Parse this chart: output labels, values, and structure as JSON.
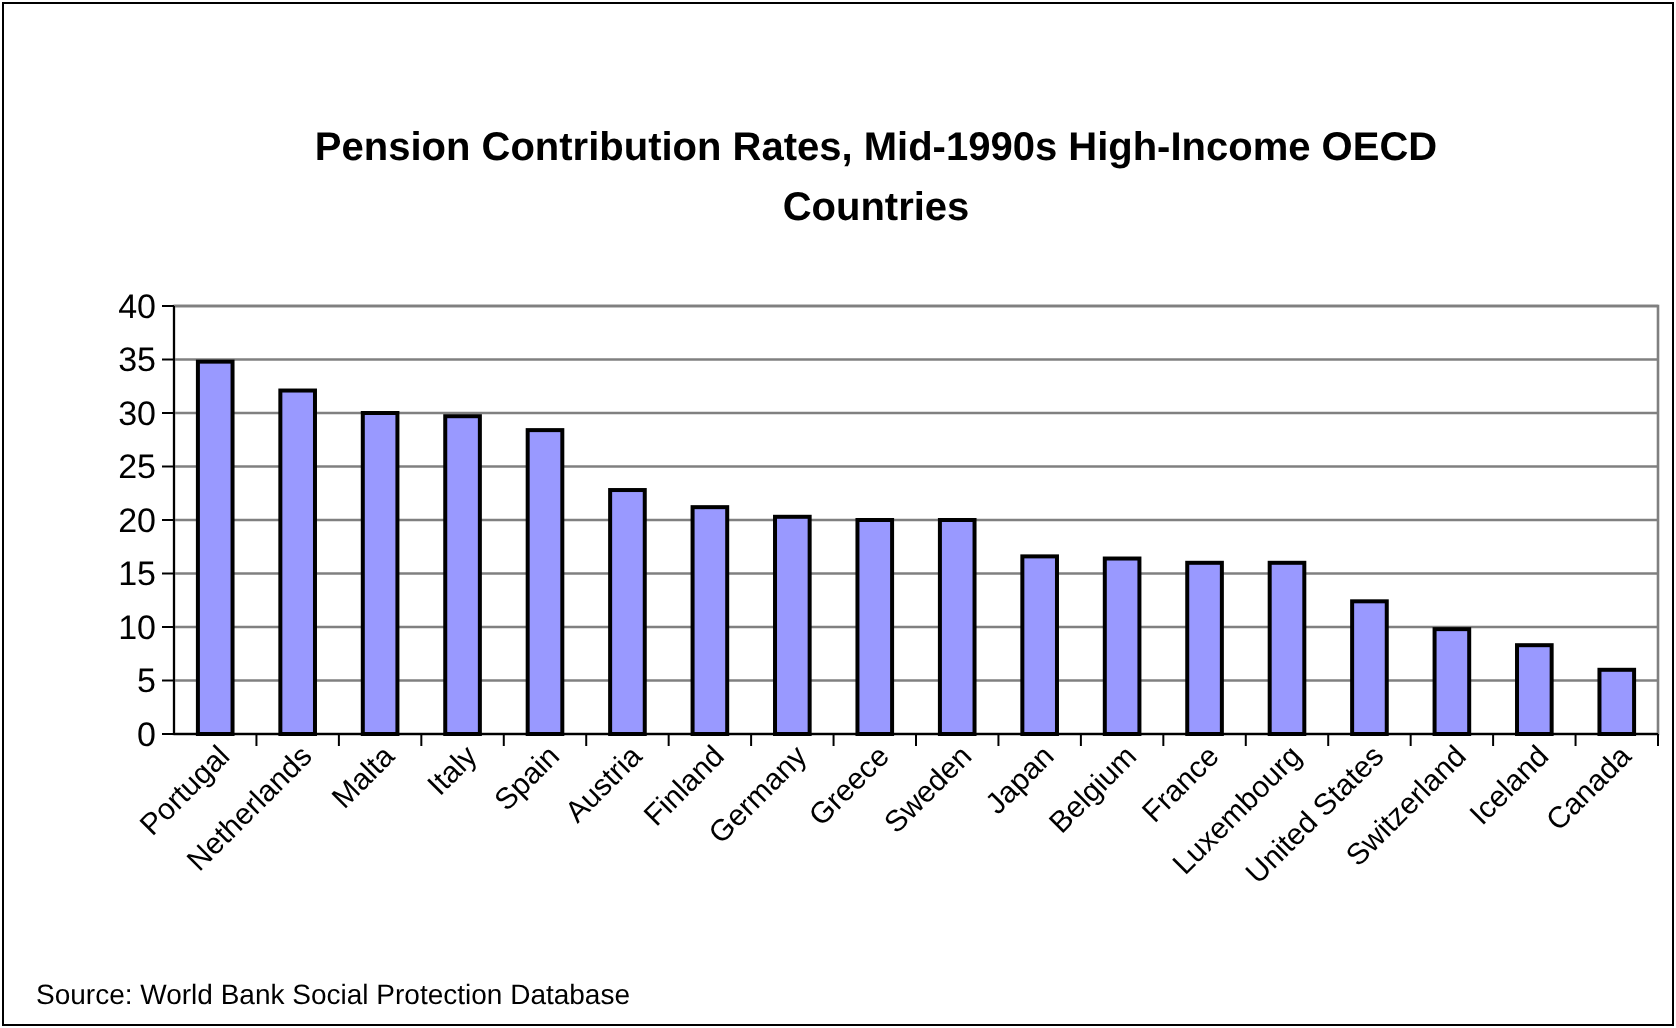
{
  "chart_data": {
    "type": "bar",
    "title": "Pension Contribution Rates, Mid-1990s High-Income OECD Countries",
    "categories": [
      "Portugal",
      "Netherlands",
      "Malta",
      "Italy",
      "Spain",
      "Austria",
      "Finland",
      "Germany",
      "Greece",
      "Sweden",
      "Japan",
      "Belgium",
      "France",
      "Luxembourg",
      "United States",
      "Switzerland",
      "Iceland",
      "Canada"
    ],
    "values": [
      34.8,
      32.1,
      30.0,
      29.7,
      28.4,
      22.8,
      21.2,
      20.3,
      20.0,
      20.0,
      16.6,
      16.4,
      16.0,
      16.0,
      12.4,
      9.8,
      8.3,
      6.0
    ],
    "color": "#9999ff",
    "ylim": [
      0,
      40
    ],
    "yticks": [
      0,
      5,
      10,
      15,
      20,
      25,
      30,
      35,
      40
    ],
    "grid": "y",
    "annotations": [
      "Source:  World Bank Social Protection Database"
    ]
  }
}
